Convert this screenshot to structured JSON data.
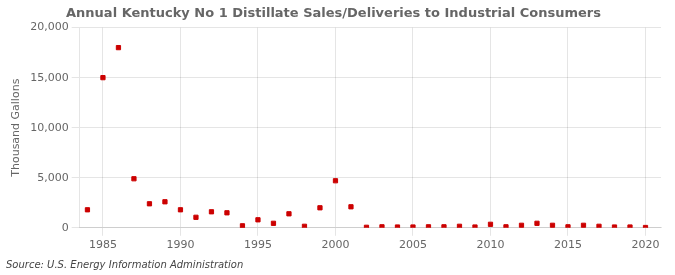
{
  "chart_data": {
    "type": "scatter",
    "title": "Annual Kentucky No 1 Distillate Sales/Deliveries to Industrial Consumers",
    "ylabel": "Thousand Gallons",
    "annotations": [
      "Source: U.S. Energy Information Administration"
    ],
    "x": [
      1984,
      1985,
      1986,
      1987,
      1988,
      1989,
      1990,
      1991,
      1992,
      1993,
      1994,
      1995,
      1996,
      1997,
      1998,
      1999,
      2000,
      2001,
      2002,
      2003,
      2004,
      2005,
      2006,
      2007,
      2008,
      2009,
      2010,
      2011,
      2012,
      2013,
      2014,
      2015,
      2016,
      2017,
      2018,
      2019,
      2020
    ],
    "values": [
      1800,
      15000,
      18000,
      4900,
      2400,
      2600,
      1800,
      1050,
      1600,
      1500,
      200,
      800,
      450,
      1400,
      150,
      2000,
      4700,
      2100,
      50,
      100,
      80,
      80,
      100,
      100,
      150,
      80,
      350,
      100,
      250,
      450,
      250,
      100,
      250,
      150,
      80,
      80,
      30
    ],
    "color": "#cc0000",
    "marker": "square",
    "xlim": [
      1983.5,
      2021
    ],
    "xticks": [
      1985,
      1990,
      1995,
      2000,
      2005,
      2010,
      2015,
      2020
    ],
    "ylim": [
      0,
      20000
    ],
    "yticks": [
      0,
      {
        "value": 5000,
        "label": "5,000"
      },
      {
        "value": 10000,
        "label": "10,000"
      },
      {
        "value": 15000,
        "label": "15,000"
      },
      {
        "value": 20000,
        "label": "20,000"
      }
    ],
    "grid": true
  }
}
